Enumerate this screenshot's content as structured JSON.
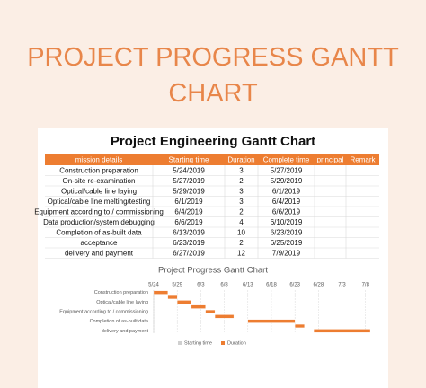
{
  "header": {
    "title": "PROJECT PROGRESS GANTT CHART"
  },
  "table": {
    "title": "Project Engineering Gantt Chart",
    "columns": [
      "mission details",
      "Starting time",
      "Duration",
      "Complete time",
      "principal",
      "Remark"
    ],
    "rows": [
      [
        "Construction preparation",
        "5/24/2019",
        "3",
        "5/27/2019",
        "",
        ""
      ],
      [
        "On-site re-examination",
        "5/27/2019",
        "2",
        "5/29/2019",
        "",
        ""
      ],
      [
        "Optical/cable line laying",
        "5/29/2019",
        "3",
        "6/1/2019",
        "",
        ""
      ],
      [
        "Optical/cable line melting/testing",
        "6/1/2019",
        "3",
        "6/4/2019",
        "",
        ""
      ],
      [
        "Equipment according to / commissioning",
        "6/4/2019",
        "2",
        "6/6/2019",
        "",
        ""
      ],
      [
        "Data production/system debugging",
        "6/6/2019",
        "4",
        "6/10/2019",
        "",
        ""
      ],
      [
        "Completion of as-built data",
        "6/13/2019",
        "10",
        "6/23/2019",
        "",
        ""
      ],
      [
        "acceptance",
        "6/23/2019",
        "2",
        "6/25/2019",
        "",
        ""
      ],
      [
        "delivery and payment",
        "6/27/2019",
        "12",
        "7/9/2019",
        "",
        ""
      ]
    ]
  },
  "chart_data": {
    "type": "gantt",
    "title": "Project Progress Gantt Chart",
    "categories": [
      "Construction preparation",
      null,
      "Optical/cable line laying",
      null,
      "Equipment according to / commissioning",
      null,
      "Completion of as-built data",
      null,
      "delivery and payment"
    ],
    "series": [
      {
        "name": "Starting time",
        "values": [
          144,
          147,
          149,
          152,
          155,
          157,
          164,
          174,
          178
        ]
      },
      {
        "name": "Duration",
        "color": "#ed7d31",
        "values": [
          3,
          2,
          3,
          3,
          2,
          4,
          10,
          2,
          12
        ]
      }
    ],
    "xlim": [
      144,
      190
    ],
    "xticks": [
      {
        "value": 144,
        "label": "5/24"
      },
      {
        "value": 149,
        "label": "5/29"
      },
      {
        "value": 154,
        "label": "6/3"
      },
      {
        "value": 159,
        "label": "6/8"
      },
      {
        "value": 164,
        "label": "6/13"
      },
      {
        "value": 169,
        "label": "6/18"
      },
      {
        "value": 174,
        "label": "6/23"
      },
      {
        "value": 179,
        "label": "6/28"
      },
      {
        "value": 184,
        "label": "7/3"
      },
      {
        "value": 189,
        "label": "7/8"
      }
    ],
    "grid": true,
    "legend": "bottom"
  }
}
